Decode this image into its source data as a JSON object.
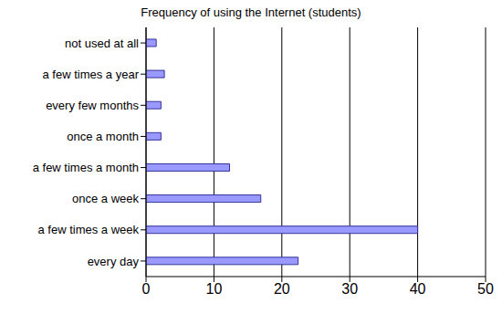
{
  "chart_data": {
    "type": "bar",
    "title": "Frequency of using the Internet (students)",
    "orientation": "horizontal",
    "categories": [
      "not used at all",
      "a few times a year",
      "every few months",
      "once a month",
      "a few times a month",
      "once a week",
      "a few times a week",
      "every day"
    ],
    "values": [
      1.5,
      2.7,
      2.2,
      2.2,
      12.3,
      16.9,
      40,
      22.4
    ],
    "color": "#9999ff",
    "xlim": [
      0,
      50
    ],
    "xticks": [
      0,
      10,
      20,
      30,
      40,
      50
    ],
    "grid": true
  }
}
